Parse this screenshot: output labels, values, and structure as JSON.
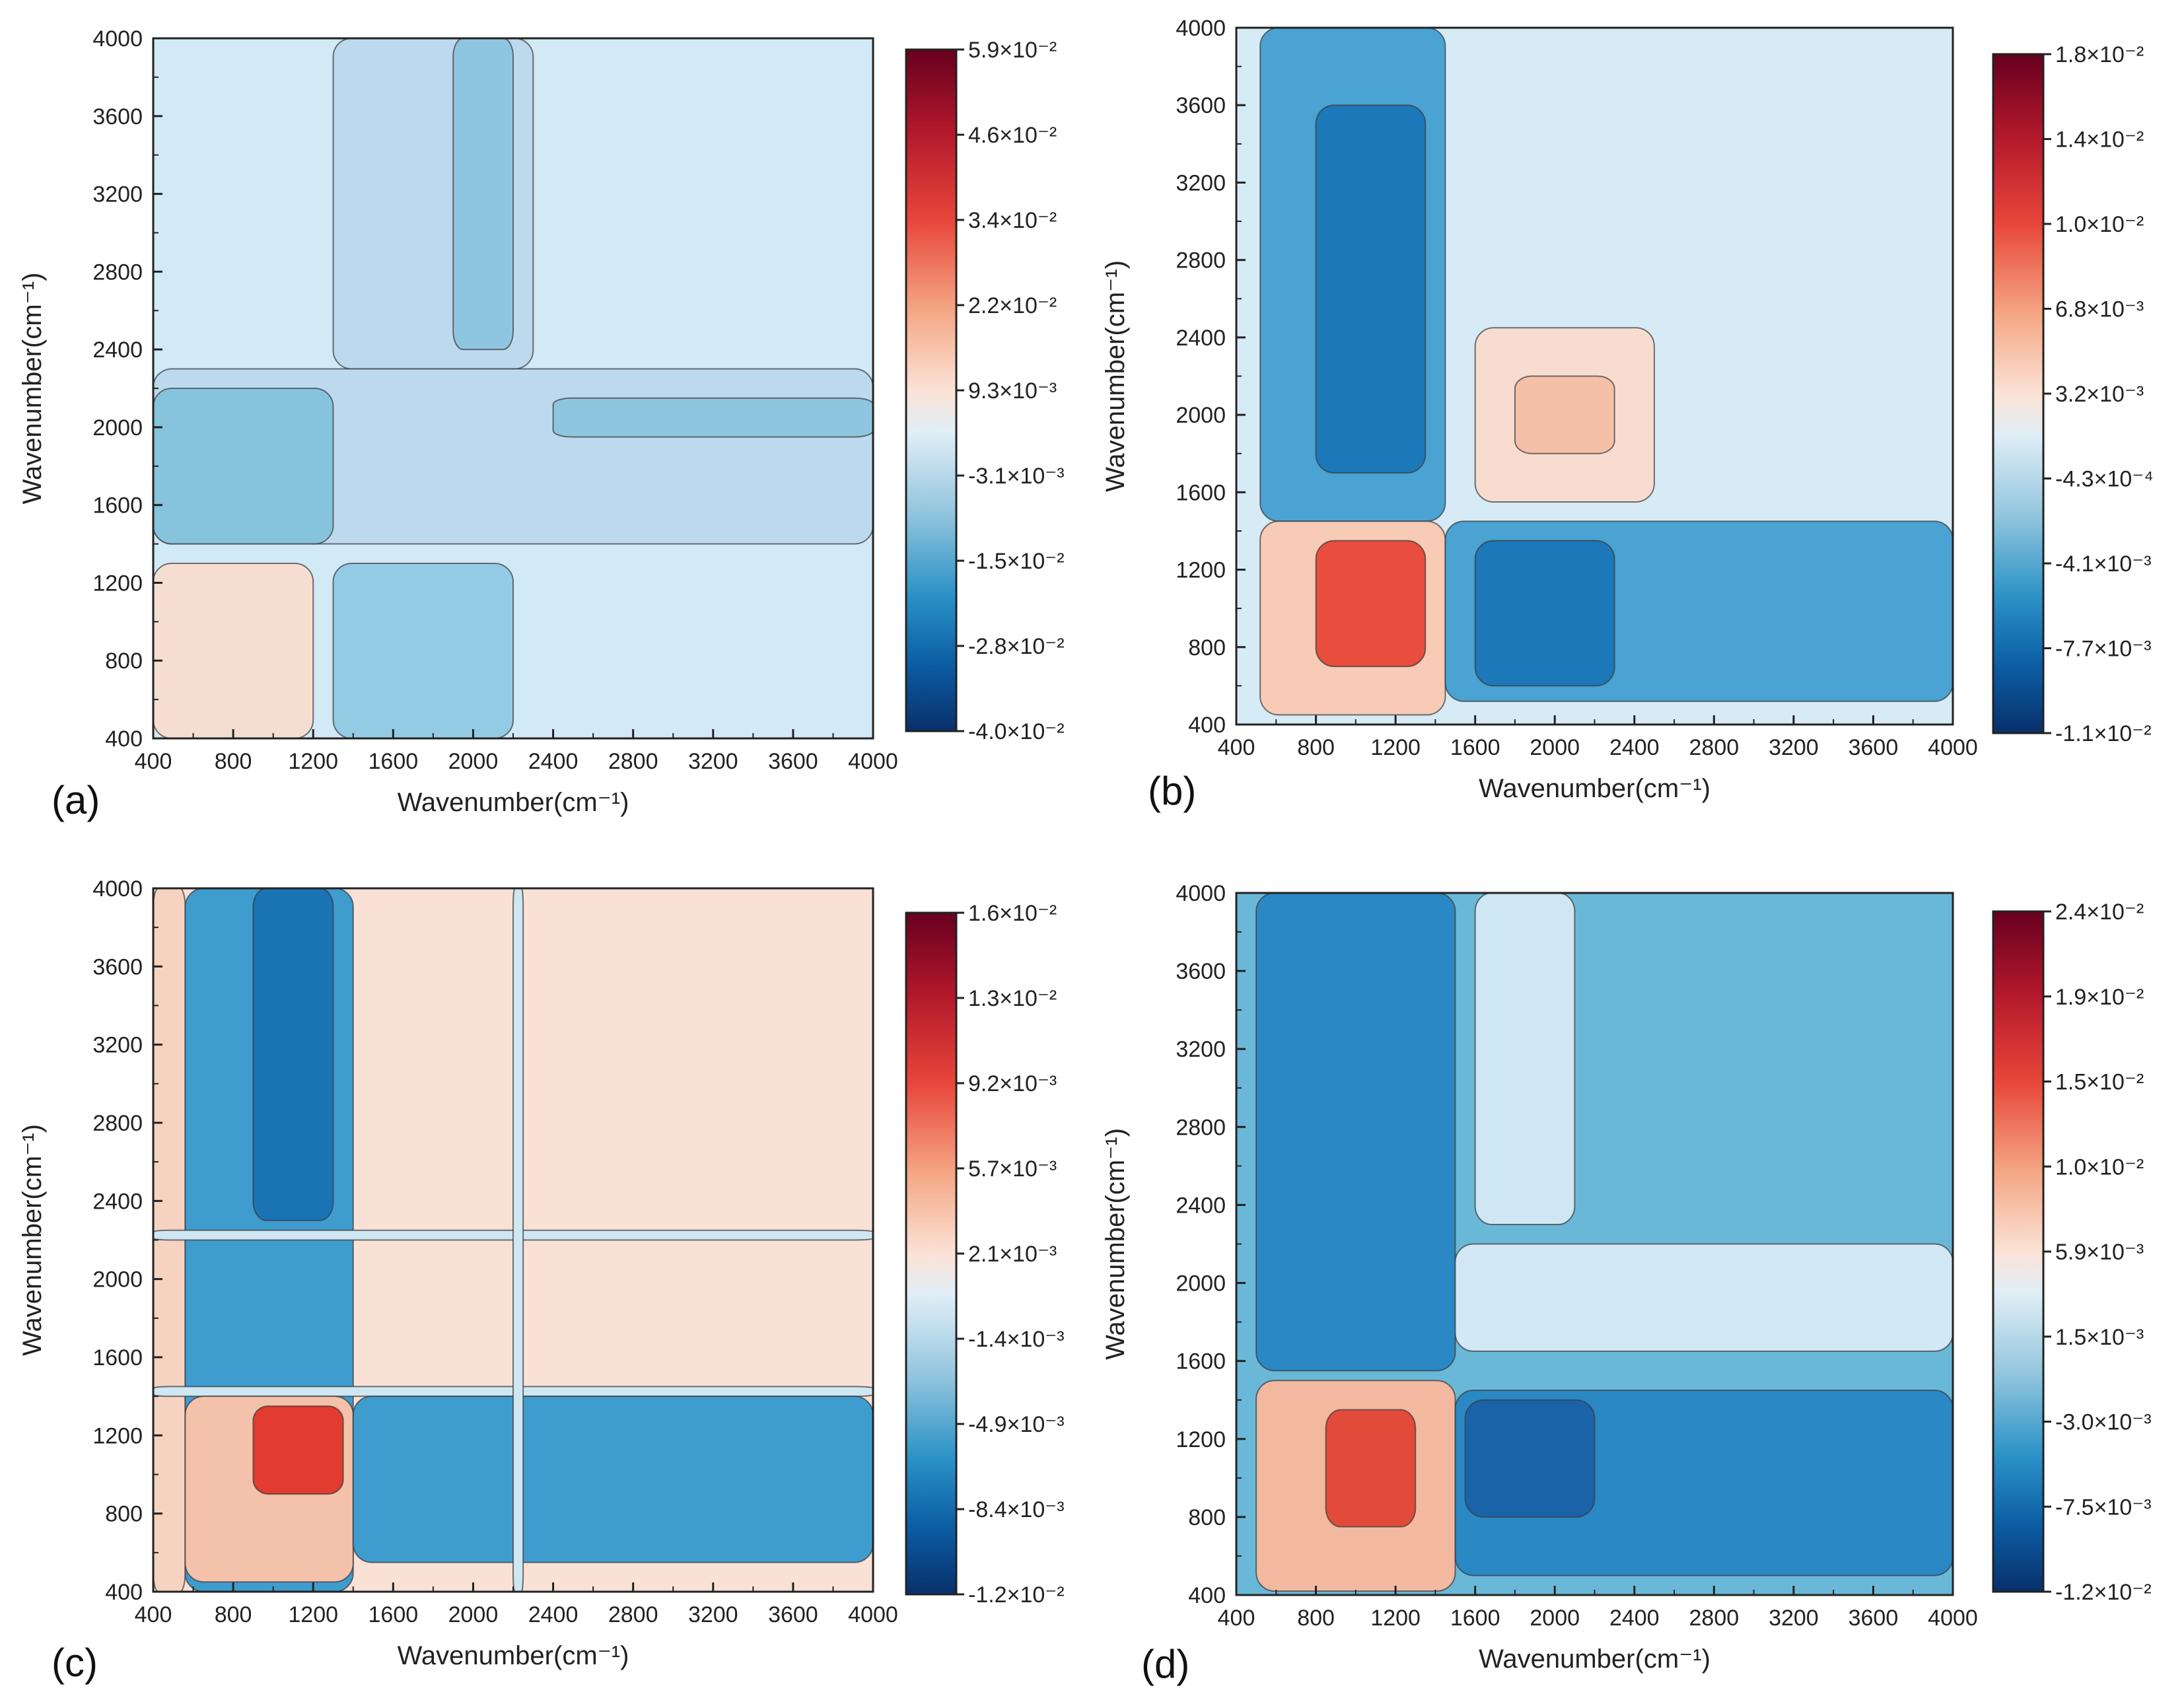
{
  "chart_data": [
    {
      "panel": "(a)",
      "type": "heatmap",
      "subtype": "2D correlation contour map",
      "xlabel": "Wavenumber(cm⁻¹)",
      "ylabel": "Wavenumber(cm⁻¹)",
      "xlim": [
        400,
        4000
      ],
      "ylim": [
        400,
        4000
      ],
      "ticks": [
        "400",
        "800",
        "1200",
        "1600",
        "2000",
        "2400",
        "2800",
        "3200",
        "3600",
        "4000"
      ],
      "colorbar": {
        "min": -0.04,
        "max": 0.059,
        "labels": [
          "5.9×10⁻²",
          "4.6×10⁻²",
          "3.4×10⁻²",
          "2.2×10⁻²",
          "9.3×10⁻³",
          "-3.1×10⁻³",
          "-1.5×10⁻²",
          "-2.8×10⁻²",
          "-4.0×10⁻²"
        ]
      },
      "background": "#d2e9f6",
      "blocks": [
        {
          "x": [
            1300,
            2300
          ],
          "y": [
            2300,
            4000
          ],
          "color": "#bdd9ee"
        },
        {
          "x": [
            400,
            4000
          ],
          "y": [
            1400,
            2300
          ],
          "color": "#bdd9ee"
        },
        {
          "x": [
            400,
            1300
          ],
          "y": [
            1400,
            2200
          ],
          "color": "#86c4de"
        },
        {
          "x": [
            1300,
            2200
          ],
          "y": [
            400,
            1300
          ],
          "color": "#94cbe4"
        },
        {
          "x": [
            2400,
            4000
          ],
          "y": [
            1950,
            2150
          ],
          "color": "#8fc6df"
        },
        {
          "x": [
            1900,
            2200
          ],
          "y": [
            2400,
            4000
          ],
          "color": "#8fc6df"
        },
        {
          "x": [
            400,
            1200
          ],
          "y": [
            400,
            1300
          ],
          "color": "#f6ddd2"
        }
      ]
    },
    {
      "panel": "(b)",
      "type": "heatmap",
      "subtype": "2D correlation contour map",
      "xlabel": "Wavenumber(cm⁻¹)",
      "ylabel": "Wavenumber(cm⁻¹)",
      "xlim": [
        400,
        4000
      ],
      "ylim": [
        400,
        4000
      ],
      "ticks": [
        "400",
        "800",
        "1200",
        "1600",
        "2000",
        "2400",
        "2800",
        "3200",
        "3600",
        "4000"
      ],
      "colorbar": {
        "min": -0.011,
        "max": 0.018,
        "labels": [
          "1.8×10⁻²",
          "1.4×10⁻²",
          "1.0×10⁻²",
          "6.8×10⁻³",
          "3.2×10⁻³",
          "-4.3×10⁻⁴",
          "-4.1×10⁻³",
          "-7.7×10⁻³",
          "-1.1×10⁻²"
        ]
      },
      "background": "#d6ebf6",
      "blocks": [
        {
          "x": [
            520,
            1450
          ],
          "y": [
            1450,
            4000
          ],
          "color": "#4aa3d2"
        },
        {
          "x": [
            800,
            1350
          ],
          "y": [
            1700,
            3600
          ],
          "color": "#1c78b8"
        },
        {
          "x": [
            1600,
            2500
          ],
          "y": [
            1550,
            2450
          ],
          "color": "#f8dccf"
        },
        {
          "x": [
            1800,
            2300
          ],
          "y": [
            1800,
            2200
          ],
          "color": "#f4c0a8"
        },
        {
          "x": [
            520,
            1450
          ],
          "y": [
            450,
            1450
          ],
          "color": "#f7cbb6"
        },
        {
          "x": [
            800,
            1350
          ],
          "y": [
            700,
            1350
          ],
          "color": "#e84d3d"
        },
        {
          "x": [
            1450,
            4000
          ],
          "y": [
            520,
            1450
          ],
          "color": "#4aa3d2"
        },
        {
          "x": [
            1600,
            2300
          ],
          "y": [
            600,
            1350
          ],
          "color": "#1c78b8"
        }
      ]
    },
    {
      "panel": "(c)",
      "type": "heatmap",
      "subtype": "2D correlation contour map",
      "xlabel": "Wavenumber(cm⁻¹)",
      "ylabel": "Wavenumber(cm⁻¹)",
      "xlim": [
        400,
        4000
      ],
      "ylim": [
        400,
        4000
      ],
      "ticks": [
        "400",
        "800",
        "1200",
        "1600",
        "2000",
        "2400",
        "2800",
        "3200",
        "3600",
        "4000"
      ],
      "colorbar": {
        "min": -0.012,
        "max": 0.016,
        "labels": [
          "1.6×10⁻²",
          "1.3×10⁻²",
          "9.2×10⁻³",
          "5.7×10⁻³",
          "2.1×10⁻³",
          "-1.4×10⁻³",
          "-4.9×10⁻³",
          "-8.4×10⁻³",
          "-1.2×10⁻²"
        ]
      },
      "background": "#f9e1d6",
      "blocks": [
        {
          "x": [
            400,
            560
          ],
          "y": [
            400,
            4000
          ],
          "color": "#f6d2c0"
        },
        {
          "x": [
            560,
            1400
          ],
          "y": [
            400,
            4000
          ],
          "color": "#3f9ccf"
        },
        {
          "x": [
            900,
            1300
          ],
          "y": [
            2300,
            4000
          ],
          "color": "#1a73b5"
        },
        {
          "x": [
            400,
            4000
          ],
          "y": [
            2200,
            2250
          ],
          "color": "#cfe7f3"
        },
        {
          "x": [
            400,
            4000
          ],
          "y": [
            1400,
            1450
          ],
          "color": "#cfe7f3"
        },
        {
          "x": [
            560,
            1400
          ],
          "y": [
            450,
            1400
          ],
          "color": "#f4c2aa"
        },
        {
          "x": [
            900,
            1350
          ],
          "y": [
            900,
            1350
          ],
          "color": "#e23b30"
        },
        {
          "x": [
            1400,
            4000
          ],
          "y": [
            550,
            1400
          ],
          "color": "#3f9ccf"
        },
        {
          "x": [
            2200,
            2250
          ],
          "y": [
            400,
            4000
          ],
          "color": "#cfe7f3"
        }
      ]
    },
    {
      "panel": "(d)",
      "type": "heatmap",
      "subtype": "2D correlation contour map",
      "xlabel": "Wavenumber(cm⁻¹)",
      "ylabel": "Wavenumber(cm⁻¹)",
      "xlim": [
        400,
        4000
      ],
      "ylim": [
        400,
        4000
      ],
      "ticks": [
        "400",
        "800",
        "1200",
        "1600",
        "2000",
        "2400",
        "2800",
        "3200",
        "3600",
        "4000"
      ],
      "colorbar": {
        "min": -0.012,
        "max": 0.024,
        "labels": [
          "2.4×10⁻²",
          "1.9×10⁻²",
          "1.5×10⁻²",
          "1.0×10⁻²",
          "5.9×10⁻³",
          "1.5×10⁻³",
          "-3.0×10⁻³",
          "-7.5×10⁻³",
          "-1.2×10⁻²"
        ]
      },
      "background": "#6ab8d8",
      "blocks": [
        {
          "x": [
            500,
            1500
          ],
          "y": [
            1550,
            4000
          ],
          "color": "#2a88c4"
        },
        {
          "x": [
            1600,
            2100
          ],
          "y": [
            2300,
            4000
          ],
          "color": "#cfe7f3"
        },
        {
          "x": [
            1500,
            4000
          ],
          "y": [
            1650,
            2200
          ],
          "color": "#d2e8f4"
        },
        {
          "x": [
            500,
            1500
          ],
          "y": [
            420,
            1500
          ],
          "color": "#f2b9a0"
        },
        {
          "x": [
            850,
            1300
          ],
          "y": [
            750,
            1350
          ],
          "color": "#e24a3a"
        },
        {
          "x": [
            1500,
            4000
          ],
          "y": [
            500,
            1450
          ],
          "color": "#2a88c4"
        },
        {
          "x": [
            1550,
            2200
          ],
          "y": [
            800,
            1400
          ],
          "color": "#1b63a8"
        }
      ]
    }
  ]
}
